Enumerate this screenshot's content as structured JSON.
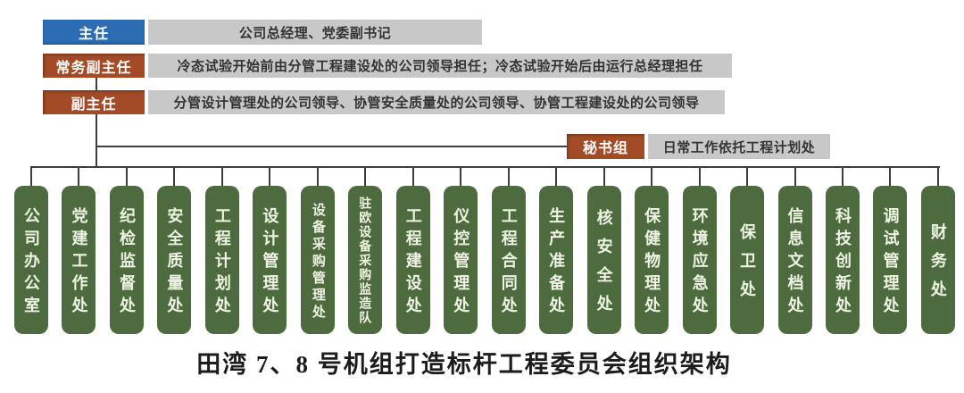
{
  "colors": {
    "director_bg": "#2c6cb3",
    "deputy_bg": "#a34b27",
    "desc_bg": "#c8c8c8",
    "dept_bg": "#4e6b3f",
    "line": "#3d3d3d"
  },
  "header_rows": [
    {
      "role": "主任",
      "desc": "公司总经理、党委副书记"
    },
    {
      "role": "常务副主任",
      "desc": "冷态试验开始前由分管工程建设处的公司领导担任；冷态试验开始后由运行总经理担任"
    },
    {
      "role": "副主任",
      "desc": "分管设计管理处的公司领导、协管安全质量处的公司领导、协管工程建设处的公司领导"
    }
  ],
  "secretary": {
    "role": "秘书组",
    "desc": "日常工作依托工程计划处"
  },
  "departments": [
    "公司办公室",
    "党建工作处",
    "纪检监督处",
    "安全质量处",
    "工程计划处",
    "设计管理处",
    "设备采购管理处",
    "驻欧设备采购监造队",
    "工程建设处",
    "仪控管理处",
    "工程合同处",
    "生产准备处",
    "核安全处",
    "保健物理处",
    "环境应急处",
    "保卫处",
    "信息文档处",
    "科技创新处",
    "调试管理处",
    "财务处"
  ],
  "caption": "田湾 7、8 号机组打造标杆工程委员会组织架构"
}
